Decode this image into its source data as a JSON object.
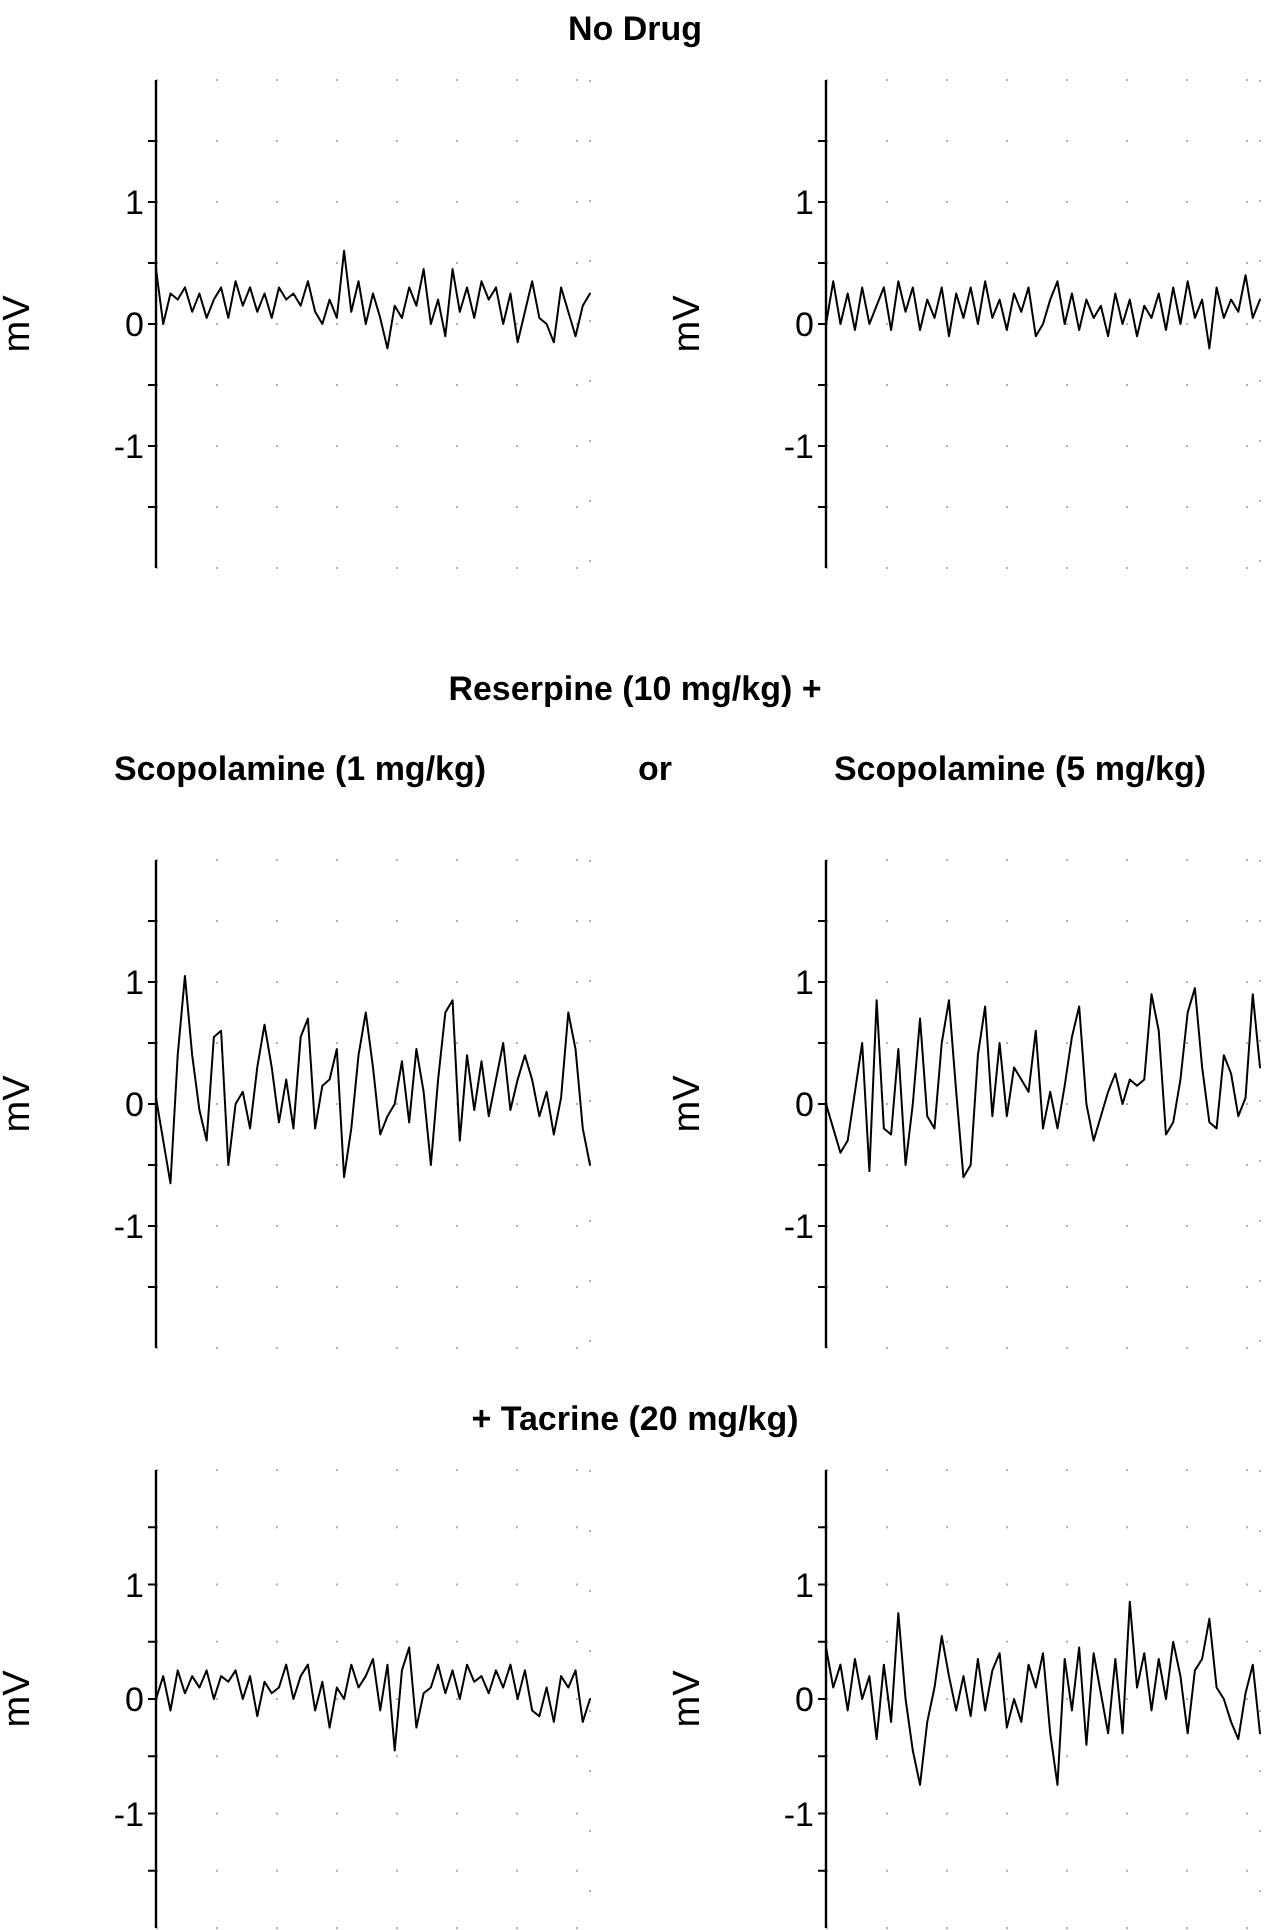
{
  "chart_data": [
    {
      "type": "line",
      "title": "No Drug",
      "ylabel": "mV",
      "ylim": [
        -2,
        2
      ],
      "yticks": [
        {
          "value": -1.5,
          "label": null
        },
        -1,
        {
          "value": -0.5,
          "label": null
        },
        0,
        {
          "value": 0.5,
          "label": null
        },
        1,
        {
          "value": 1.5,
          "label": null
        }
      ],
      "grid": true,
      "categories": [
        null,
        null,
        null,
        null,
        null,
        null,
        null,
        null,
        null,
        null,
        null,
        null,
        null,
        null,
        null,
        null,
        null,
        null,
        null,
        null,
        null,
        null,
        null,
        null,
        null,
        null,
        null,
        null,
        null,
        null,
        null,
        null,
        null,
        null,
        null,
        null,
        null,
        null,
        null,
        null,
        null,
        null,
        null,
        null,
        null,
        null,
        null,
        null,
        null,
        null,
        null,
        null,
        null,
        null,
        null,
        null,
        null,
        null,
        null,
        null,
        null
      ],
      "series": [
        {
          "color": "#000000",
          "values": [
            0.45,
            0.0,
            0.25,
            0.2,
            0.3,
            0.1,
            0.25,
            0.05,
            0.2,
            0.3,
            0.05,
            0.35,
            0.15,
            0.3,
            0.1,
            0.25,
            0.05,
            0.3,
            0.2,
            0.25,
            0.15,
            0.35,
            0.1,
            0.0,
            0.2,
            0.05,
            0.6,
            0.1,
            0.35,
            0.0,
            0.25,
            0.05,
            -0.2,
            0.15,
            0.05,
            0.3,
            0.15,
            0.45,
            0.0,
            0.2,
            -0.1,
            0.45,
            0.1,
            0.3,
            0.05,
            0.35,
            0.2,
            0.3,
            0.0,
            0.25,
            -0.15,
            0.1,
            0.35,
            0.05,
            0.0,
            -0.15,
            0.3,
            0.1,
            -0.1,
            0.15,
            0.25
          ]
        }
      ]
    },
    {
      "type": "line",
      "ylabel": "mV",
      "ylim": [
        -2,
        2
      ],
      "yticks": [
        {
          "value": -1.5,
          "label": null
        },
        -1,
        {
          "value": -0.5,
          "label": null
        },
        0,
        {
          "value": 0.5,
          "label": null
        },
        1,
        {
          "value": 1.5,
          "label": null
        }
      ],
      "grid": true,
      "categories": [
        null,
        null,
        null,
        null,
        null,
        null,
        null,
        null,
        null,
        null,
        null,
        null,
        null,
        null,
        null,
        null,
        null,
        null,
        null,
        null,
        null,
        null,
        null,
        null,
        null,
        null,
        null,
        null,
        null,
        null,
        null,
        null,
        null,
        null,
        null,
        null,
        null,
        null,
        null,
        null,
        null,
        null,
        null,
        null,
        null,
        null,
        null,
        null,
        null,
        null,
        null,
        null,
        null,
        null,
        null,
        null,
        null,
        null,
        null,
        null,
        null
      ],
      "series": [
        {
          "color": "#000000",
          "values": [
            0.0,
            0.35,
            0.0,
            0.25,
            -0.05,
            0.3,
            0.0,
            0.15,
            0.3,
            -0.05,
            0.35,
            0.1,
            0.3,
            -0.05,
            0.2,
            0.05,
            0.3,
            -0.1,
            0.25,
            0.05,
            0.3,
            0.0,
            0.35,
            0.05,
            0.2,
            -0.05,
            0.25,
            0.1,
            0.3,
            -0.1,
            0.0,
            0.2,
            0.35,
            0.0,
            0.25,
            -0.05,
            0.2,
            0.05,
            0.15,
            -0.1,
            0.25,
            0.0,
            0.2,
            -0.1,
            0.15,
            0.05,
            0.25,
            -0.05,
            0.3,
            0.0,
            0.35,
            0.05,
            0.2,
            -0.2,
            0.3,
            0.05,
            0.2,
            0.1,
            0.4,
            0.05,
            0.2
          ]
        }
      ]
    },
    {
      "type": "line",
      "title": "Reserpine (10 mg/kg) +",
      "subtitle": "Scopolamine (1 mg/kg)",
      "annotations": [
        "or"
      ],
      "ylabel": "mV",
      "ylim": [
        -2,
        2
      ],
      "yticks": [
        {
          "value": -1.5,
          "label": null
        },
        -1,
        {
          "value": -0.5,
          "label": null
        },
        0,
        {
          "value": 0.5,
          "label": null
        },
        1,
        {
          "value": 1.5,
          "label": null
        }
      ],
      "grid": true,
      "categories": [
        null,
        null,
        null,
        null,
        null,
        null,
        null,
        null,
        null,
        null,
        null,
        null,
        null,
        null,
        null,
        null,
        null,
        null,
        null,
        null,
        null,
        null,
        null,
        null,
        null,
        null,
        null,
        null,
        null,
        null,
        null,
        null,
        null,
        null,
        null,
        null,
        null,
        null,
        null,
        null,
        null,
        null,
        null,
        null,
        null,
        null,
        null,
        null,
        null,
        null,
        null,
        null,
        null,
        null,
        null,
        null,
        null,
        null,
        null,
        null,
        null
      ],
      "series": [
        {
          "color": "#000000",
          "values": [
            0.05,
            -0.3,
            -0.65,
            0.4,
            1.05,
            0.4,
            -0.05,
            -0.3,
            0.55,
            0.6,
            -0.5,
            0.0,
            0.1,
            -0.2,
            0.3,
            0.65,
            0.3,
            -0.15,
            0.2,
            -0.2,
            0.55,
            0.7,
            -0.2,
            0.15,
            0.2,
            0.45,
            -0.6,
            -0.2,
            0.4,
            0.75,
            0.3,
            -0.25,
            -0.1,
            0.0,
            0.35,
            -0.15,
            0.45,
            0.1,
            -0.5,
            0.2,
            0.75,
            0.85,
            -0.3,
            0.4,
            -0.05,
            0.35,
            -0.1,
            0.2,
            0.5,
            -0.05,
            0.2,
            0.4,
            0.2,
            -0.1,
            0.1,
            -0.25,
            0.05,
            0.75,
            0.45,
            -0.2,
            -0.5
          ]
        }
      ]
    },
    {
      "type": "line",
      "subtitle": "Scopolamine (5 mg/kg)",
      "ylabel": "mV",
      "ylim": [
        -2,
        2
      ],
      "yticks": [
        {
          "value": -1.5,
          "label": null
        },
        -1,
        {
          "value": -0.5,
          "label": null
        },
        0,
        {
          "value": 0.5,
          "label": null
        },
        1,
        {
          "value": 1.5,
          "label": null
        }
      ],
      "grid": true,
      "categories": [
        null,
        null,
        null,
        null,
        null,
        null,
        null,
        null,
        null,
        null,
        null,
        null,
        null,
        null,
        null,
        null,
        null,
        null,
        null,
        null,
        null,
        null,
        null,
        null,
        null,
        null,
        null,
        null,
        null,
        null,
        null,
        null,
        null,
        null,
        null,
        null,
        null,
        null,
        null,
        null,
        null,
        null,
        null,
        null,
        null,
        null,
        null,
        null,
        null,
        null,
        null,
        null,
        null,
        null,
        null,
        null,
        null,
        null,
        null,
        null,
        null
      ],
      "series": [
        {
          "color": "#000000",
          "values": [
            0.0,
            -0.2,
            -0.4,
            -0.3,
            0.1,
            0.5,
            -0.55,
            0.85,
            -0.2,
            -0.25,
            0.45,
            -0.5,
            0.0,
            0.7,
            -0.1,
            -0.2,
            0.5,
            0.85,
            0.1,
            -0.6,
            -0.5,
            0.4,
            0.8,
            -0.1,
            0.5,
            -0.1,
            0.3,
            0.2,
            0.1,
            0.6,
            -0.2,
            0.1,
            -0.2,
            0.15,
            0.55,
            0.8,
            0.0,
            -0.3,
            -0.1,
            0.1,
            0.25,
            0.0,
            0.2,
            0.15,
            0.2,
            0.9,
            0.6,
            -0.25,
            -0.15,
            0.2,
            0.75,
            0.95,
            0.3,
            -0.15,
            -0.2,
            0.4,
            0.25,
            -0.1,
            0.05,
            0.9,
            0.3
          ]
        }
      ]
    },
    {
      "type": "line",
      "title": "+ Tacrine (20 mg/kg)",
      "ylabel": "mV",
      "ylim": [
        -2,
        2
      ],
      "yticks": [
        {
          "value": -1.5,
          "label": null
        },
        -1,
        {
          "value": -0.5,
          "label": null
        },
        0,
        {
          "value": 0.5,
          "label": null
        },
        1,
        {
          "value": 1.5,
          "label": null
        }
      ],
      "grid": true,
      "categories": [
        null,
        null,
        null,
        null,
        null,
        null,
        null,
        null,
        null,
        null,
        null,
        null,
        null,
        null,
        null,
        null,
        null,
        null,
        null,
        null,
        null,
        null,
        null,
        null,
        null,
        null,
        null,
        null,
        null,
        null,
        null,
        null,
        null,
        null,
        null,
        null,
        null,
        null,
        null,
        null,
        null,
        null,
        null,
        null,
        null,
        null,
        null,
        null,
        null,
        null,
        null,
        null,
        null,
        null,
        null,
        null,
        null,
        null,
        null,
        null,
        null
      ],
      "series": [
        {
          "color": "#000000",
          "values": [
            0.0,
            0.2,
            -0.1,
            0.25,
            0.05,
            0.2,
            0.1,
            0.25,
            0.0,
            0.2,
            0.15,
            0.25,
            0.0,
            0.2,
            -0.15,
            0.15,
            0.05,
            0.1,
            0.3,
            0.0,
            0.2,
            0.3,
            -0.1,
            0.15,
            -0.25,
            0.1,
            0.0,
            0.3,
            0.1,
            0.2,
            0.35,
            -0.1,
            0.3,
            -0.45,
            0.25,
            0.45,
            -0.25,
            0.05,
            0.1,
            0.3,
            0.05,
            0.25,
            0.0,
            0.3,
            0.15,
            0.2,
            0.05,
            0.25,
            0.1,
            0.3,
            0.0,
            0.25,
            -0.1,
            -0.15,
            0.1,
            -0.2,
            0.2,
            0.1,
            0.25,
            -0.2,
            0.0
          ]
        }
      ]
    },
    {
      "type": "line",
      "ylabel": "mV",
      "ylim": [
        -2,
        2
      ],
      "yticks": [
        {
          "value": -1.5,
          "label": null
        },
        -1,
        {
          "value": -0.5,
          "label": null
        },
        0,
        {
          "value": 0.5,
          "label": null
        },
        1,
        {
          "value": 1.5,
          "label": null
        }
      ],
      "grid": true,
      "categories": [
        null,
        null,
        null,
        null,
        null,
        null,
        null,
        null,
        null,
        null,
        null,
        null,
        null,
        null,
        null,
        null,
        null,
        null,
        null,
        null,
        null,
        null,
        null,
        null,
        null,
        null,
        null,
        null,
        null,
        null,
        null,
        null,
        null,
        null,
        null,
        null,
        null,
        null,
        null,
        null,
        null,
        null,
        null,
        null,
        null,
        null,
        null,
        null,
        null,
        null,
        null,
        null,
        null,
        null,
        null,
        null,
        null,
        null,
        null,
        null,
        null
      ],
      "series": [
        {
          "color": "#000000",
          "values": [
            0.45,
            0.1,
            0.3,
            -0.1,
            0.35,
            0.0,
            0.2,
            -0.35,
            0.3,
            -0.2,
            0.75,
            0.0,
            -0.45,
            -0.75,
            -0.2,
            0.1,
            0.55,
            0.2,
            -0.1,
            0.2,
            -0.15,
            0.35,
            -0.1,
            0.25,
            0.4,
            -0.25,
            0.0,
            -0.2,
            0.3,
            0.1,
            0.4,
            -0.3,
            -0.75,
            0.35,
            -0.1,
            0.45,
            -0.4,
            0.4,
            0.05,
            -0.3,
            0.35,
            -0.3,
            0.85,
            0.1,
            0.4,
            -0.1,
            0.35,
            0.0,
            0.5,
            0.2,
            -0.3,
            0.25,
            0.35,
            0.7,
            0.1,
            0.0,
            -0.2,
            -0.35,
            0.05,
            0.3,
            -0.3
          ]
        }
      ]
    }
  ]
}
